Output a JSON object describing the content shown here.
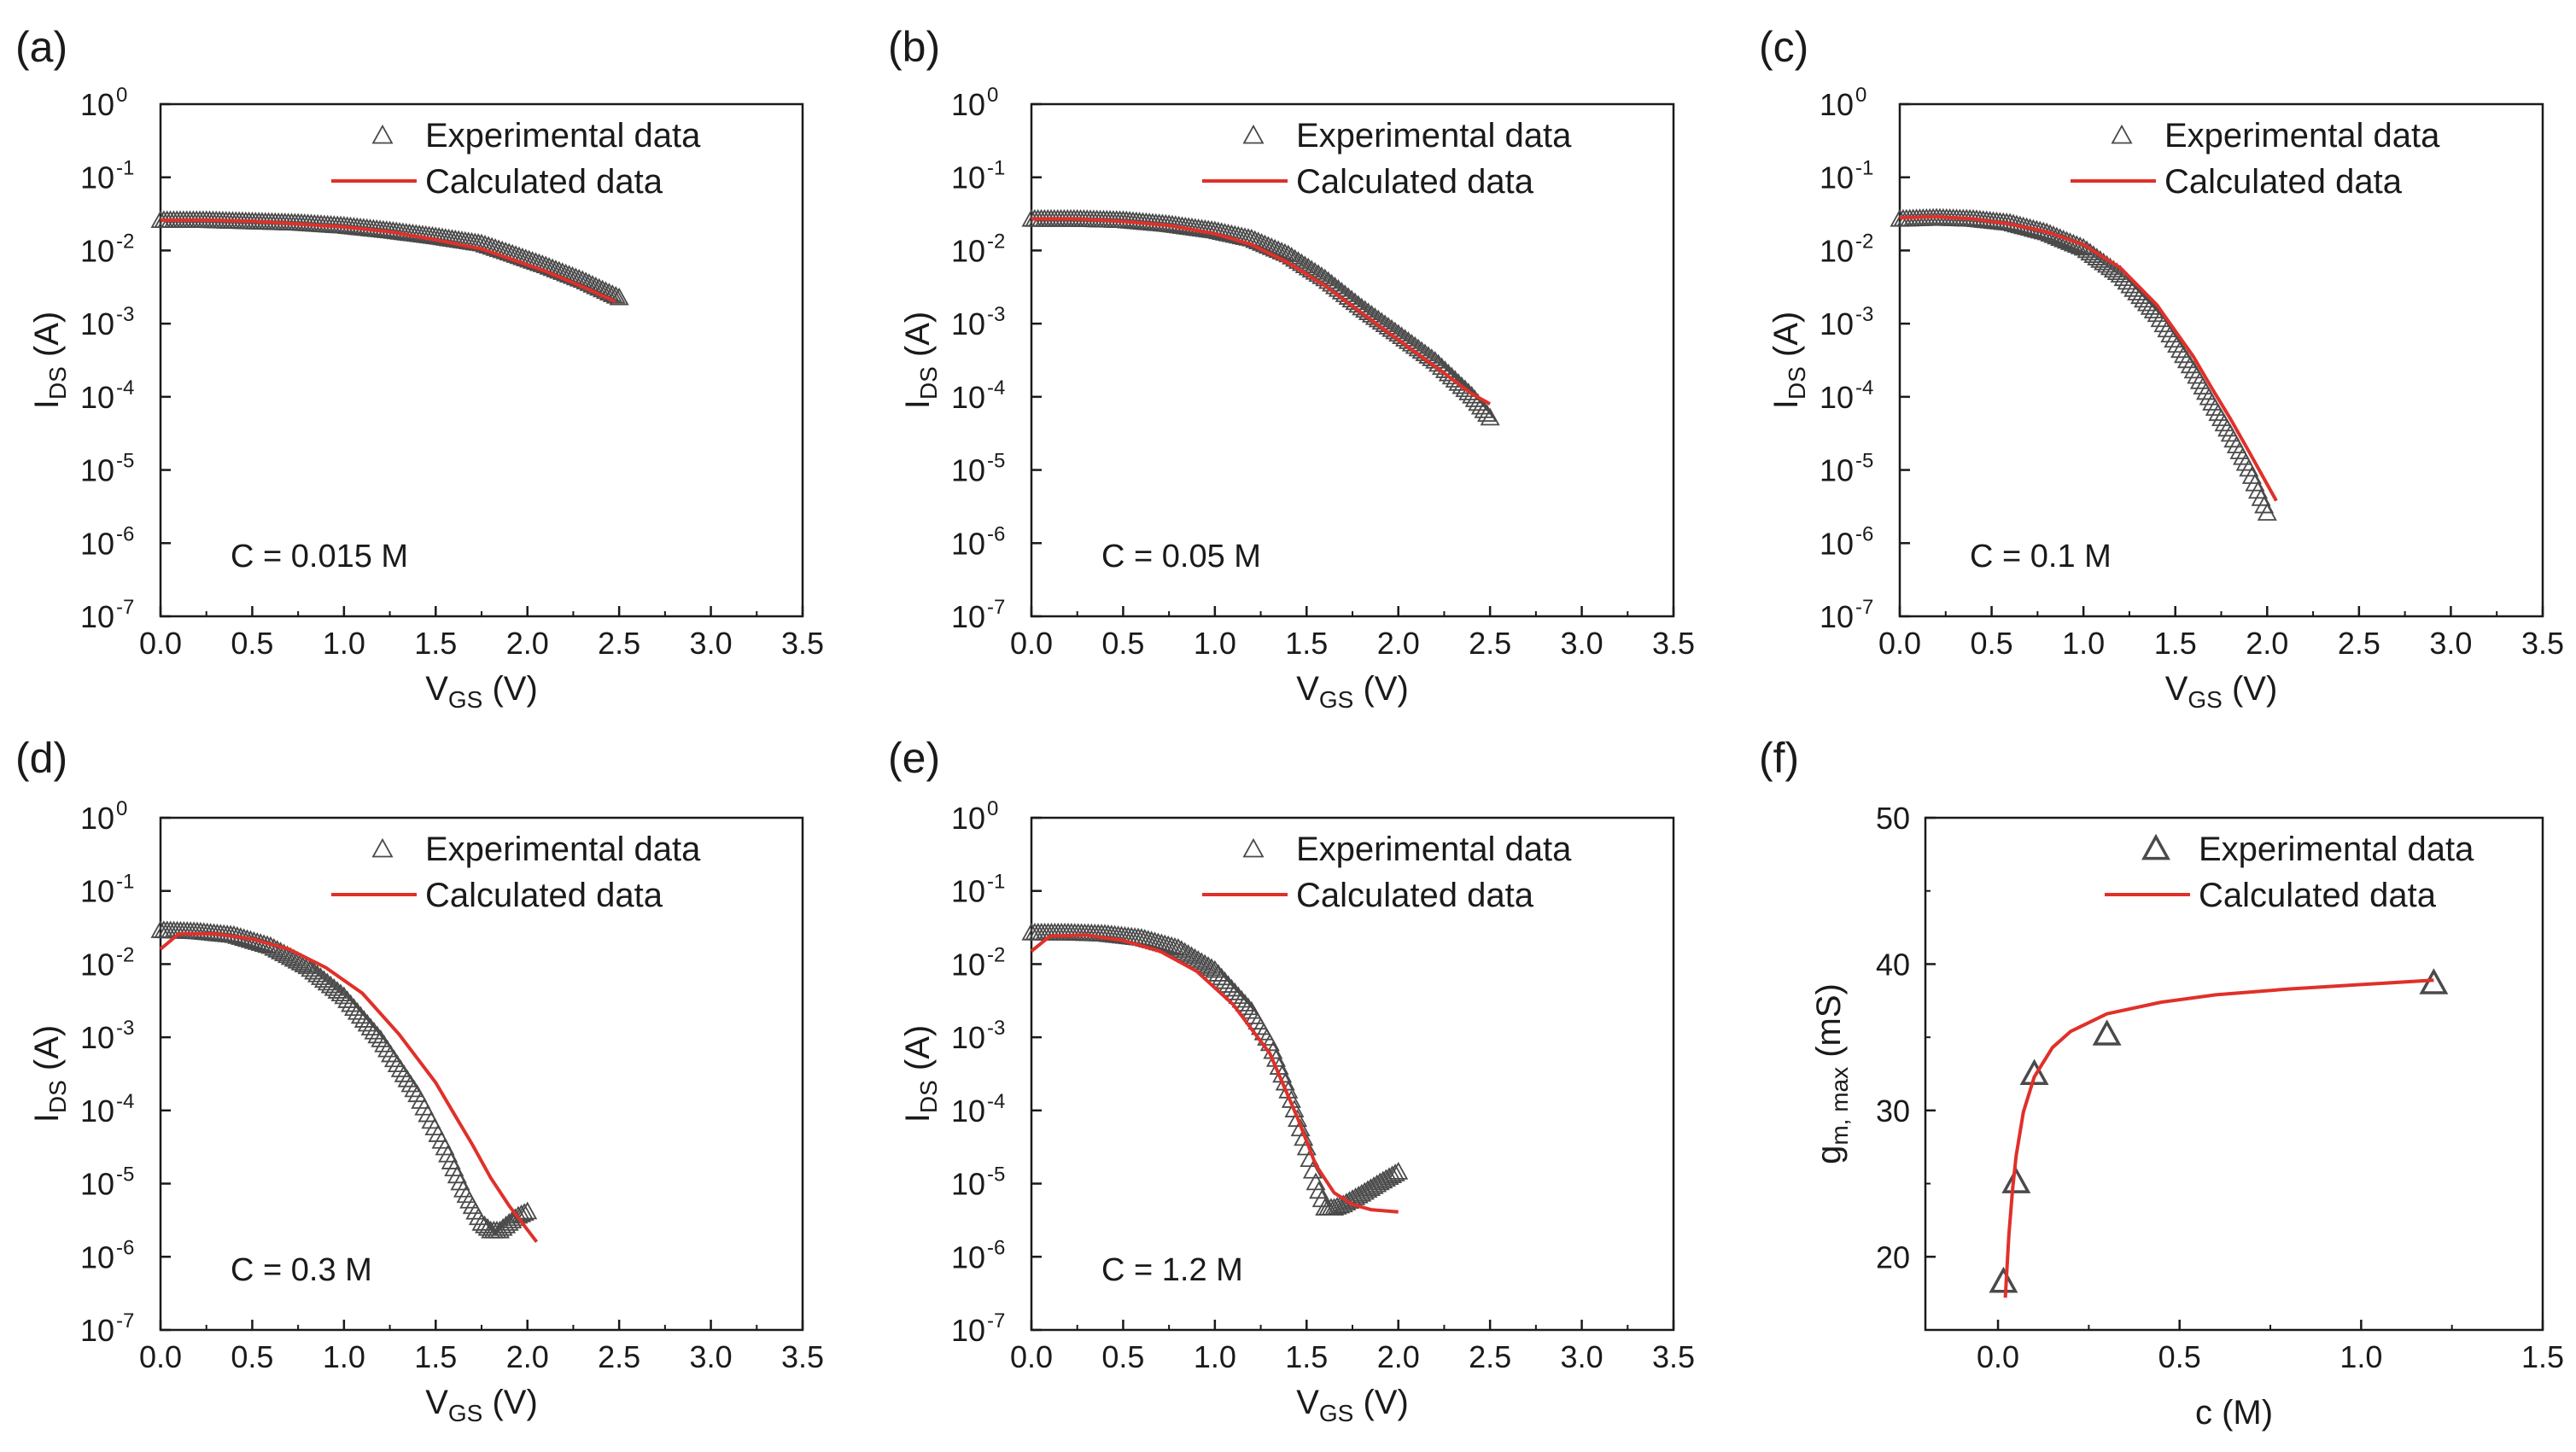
{
  "figure": {
    "colors": {
      "experimental": "#4a4a4a",
      "calculated": "#e0302a",
      "axis": "#1a1a1a"
    }
  },
  "chart_data": [
    {
      "panel": "(a)",
      "type": "scatter",
      "yscale": "log",
      "xlabel_main": "V",
      "xlabel_sub": "GS",
      "xlabel_tail": " (V)",
      "ylabel_main": "I",
      "ylabel_sub": "DS",
      "ylabel_tail": " (A)",
      "xlim": [
        0,
        3.5
      ],
      "ylim": [
        1e-07,
        1
      ],
      "xticks": [
        "0.0",
        "0.5",
        "1.0",
        "1.5",
        "2.0",
        "2.5",
        "3.0",
        "3.5"
      ],
      "ytick_exponents": [
        "0",
        "-1",
        "-2",
        "-3",
        "-4",
        "-5",
        "-6",
        "-7"
      ],
      "annotation": "C = 0.015 M",
      "legend": [
        "Experimental data",
        "Calculated data"
      ],
      "legend_position": "top-right",
      "series": [
        {
          "name": "Experimental data",
          "style": "markers",
          "x": [
            0.0,
            0.25,
            0.5,
            0.75,
            1.0,
            1.25,
            1.5,
            1.75,
            1.9,
            2.1,
            2.3,
            2.5
          ],
          "y": [
            0.025,
            0.025,
            0.024,
            0.023,
            0.021,
            0.018,
            0.015,
            0.012,
            0.009,
            0.006,
            0.0038,
            0.0022
          ]
        },
        {
          "name": "Calculated data",
          "style": "line",
          "x": [
            0.0,
            0.25,
            0.5,
            0.75,
            1.0,
            1.25,
            1.5,
            1.75,
            1.9,
            2.1,
            2.3,
            2.48
          ],
          "y": [
            0.026,
            0.026,
            0.025,
            0.023,
            0.021,
            0.018,
            0.014,
            0.0105,
            0.0078,
            0.0052,
            0.0032,
            0.002
          ]
        }
      ]
    },
    {
      "panel": "(b)",
      "type": "scatter",
      "yscale": "log",
      "xlabel_main": "V",
      "xlabel_sub": "GS",
      "xlabel_tail": " (V)",
      "ylabel_main": "I",
      "ylabel_sub": "DS",
      "ylabel_tail": " (A)",
      "xlim": [
        0,
        3.5
      ],
      "ylim": [
        1e-07,
        1
      ],
      "xticks": [
        "0.0",
        "0.5",
        "1.0",
        "1.5",
        "2.0",
        "2.5",
        "3.0",
        "3.5"
      ],
      "ytick_exponents": [
        "0",
        "-1",
        "-2",
        "-3",
        "-4",
        "-5",
        "-6",
        "-7"
      ],
      "annotation": "C = 0.05 M",
      "legend": [
        "Experimental data",
        "Calculated data"
      ],
      "legend_position": "top-right",
      "series": [
        {
          "name": "Experimental data",
          "style": "markers",
          "x": [
            0.0,
            0.25,
            0.5,
            0.75,
            1.0,
            1.2,
            1.4,
            1.6,
            1.8,
            2.0,
            2.2,
            2.4,
            2.5
          ],
          "y": [
            0.026,
            0.026,
            0.025,
            0.022,
            0.018,
            0.014,
            0.0085,
            0.004,
            0.0016,
            0.0007,
            0.0003,
            0.0001,
            5e-05
          ]
        },
        {
          "name": "Calculated data",
          "style": "line",
          "x": [
            0.0,
            0.25,
            0.5,
            0.75,
            1.0,
            1.2,
            1.4,
            1.6,
            1.8,
            2.0,
            2.2,
            2.4,
            2.5
          ],
          "y": [
            0.027,
            0.027,
            0.025,
            0.022,
            0.017,
            0.012,
            0.0068,
            0.0033,
            0.0014,
            0.0006,
            0.00026,
            0.00011,
            8e-05
          ]
        }
      ]
    },
    {
      "panel": "(c)",
      "type": "scatter",
      "yscale": "log",
      "xlabel_main": "V",
      "xlabel_sub": "GS",
      "xlabel_tail": " (V)",
      "ylabel_main": "I",
      "ylabel_sub": "DS",
      "ylabel_tail": " (A)",
      "xlim": [
        0,
        3.5
      ],
      "ylim": [
        1e-07,
        1
      ],
      "xticks": [
        "0.0",
        "0.5",
        "1.0",
        "1.5",
        "2.0",
        "2.5",
        "3.0",
        "3.5"
      ],
      "ytick_exponents": [
        "0",
        "-1",
        "-2",
        "-3",
        "-4",
        "-5",
        "-6",
        "-7"
      ],
      "annotation": "C = 0.1 M",
      "legend": [
        "Experimental data",
        "Calculated data"
      ],
      "legend_position": "top-right",
      "series": [
        {
          "name": "Experimental data",
          "style": "markers",
          "x": [
            0.0,
            0.2,
            0.4,
            0.6,
            0.8,
            1.0,
            1.2,
            1.4,
            1.6,
            1.7,
            1.8,
            1.9,
            2.0
          ],
          "y": [
            0.026,
            0.027,
            0.026,
            0.023,
            0.017,
            0.0105,
            0.0045,
            0.0013,
            0.00022,
            8e-05,
            3e-05,
            1e-05,
            2.5e-06
          ]
        },
        {
          "name": "Calculated data",
          "style": "line",
          "x": [
            0.0,
            0.2,
            0.4,
            0.6,
            0.8,
            1.0,
            1.2,
            1.4,
            1.6,
            1.7,
            1.8,
            1.9,
            2.05
          ],
          "y": [
            0.028,
            0.029,
            0.027,
            0.023,
            0.018,
            0.012,
            0.0058,
            0.0018,
            0.00035,
            0.00013,
            5e-05,
            1.8e-05,
            3.8e-06
          ]
        }
      ]
    },
    {
      "panel": "(d)",
      "type": "scatter",
      "yscale": "log",
      "xlabel_main": "V",
      "xlabel_sub": "GS",
      "xlabel_tail": " (V)",
      "ylabel_main": "I",
      "ylabel_sub": "DS",
      "ylabel_tail": " (A)",
      "xlim": [
        0,
        3.5
      ],
      "ylim": [
        1e-07,
        1
      ],
      "xticks": [
        "0.0",
        "0.5",
        "1.0",
        "1.5",
        "2.0",
        "2.5",
        "3.0",
        "3.5"
      ],
      "ytick_exponents": [
        "0",
        "-1",
        "-2",
        "-3",
        "-4",
        "-5",
        "-6",
        "-7"
      ],
      "annotation": "C = 0.3 M",
      "legend": [
        "Experimental data",
        "Calculated data"
      ],
      "legend_position": "top-right",
      "series": [
        {
          "name": "Experimental data",
          "style": "markers",
          "x": [
            0.0,
            0.2,
            0.4,
            0.6,
            0.8,
            1.0,
            1.2,
            1.4,
            1.55,
            1.65,
            1.75,
            1.8,
            1.85,
            1.9,
            1.95,
            2.0
          ],
          "y": [
            0.028,
            0.027,
            0.024,
            0.017,
            0.009,
            0.0035,
            0.0009,
            0.00016,
            3e-05,
            8e-06,
            2.8e-06,
            2.2e-06,
            2.2e-06,
            2.8e-06,
            3.5e-06,
            4e-06
          ]
        },
        {
          "name": "Calculated data",
          "style": "line",
          "x": [
            0.0,
            0.1,
            0.3,
            0.5,
            0.7,
            0.9,
            1.1,
            1.3,
            1.5,
            1.6,
            1.7,
            1.8,
            1.9,
            2.05
          ],
          "y": [
            0.016,
            0.026,
            0.026,
            0.022,
            0.016,
            0.009,
            0.004,
            0.0011,
            0.00024,
            9e-05,
            3.4e-05,
            1.2e-05,
            5e-06,
            1.6e-06
          ]
        }
      ]
    },
    {
      "panel": "(e)",
      "type": "scatter",
      "yscale": "log",
      "xlabel_main": "V",
      "xlabel_sub": "GS",
      "xlabel_tail": " (V)",
      "ylabel_main": "I",
      "ylabel_sub": "DS",
      "ylabel_tail": " (A)",
      "xlim": [
        0,
        3.5
      ],
      "ylim": [
        1e-07,
        1
      ],
      "xticks": [
        "0.0",
        "0.5",
        "1.0",
        "1.5",
        "2.0",
        "2.5",
        "3.0",
        "3.5"
      ],
      "ytick_exponents": [
        "0",
        "-1",
        "-2",
        "-3",
        "-4",
        "-5",
        "-6",
        "-7"
      ],
      "annotation": "C = 1.2 M",
      "legend": [
        "Experimental data",
        "Calculated data"
      ],
      "legend_position": "top-right",
      "series": [
        {
          "name": "Experimental data",
          "style": "markers",
          "x": [
            0.0,
            0.2,
            0.4,
            0.6,
            0.8,
            1.0,
            1.2,
            1.3,
            1.4,
            1.5,
            1.55,
            1.6,
            1.65,
            1.7,
            1.8,
            1.9,
            2.0
          ],
          "y": [
            0.026,
            0.026,
            0.025,
            0.022,
            0.016,
            0.008,
            0.0022,
            0.0008,
            0.00018,
            3e-05,
            1e-05,
            4.5e-06,
            4.5e-06,
            5e-06,
            7e-06,
            1e-05,
            1.4e-05
          ]
        },
        {
          "name": "Calculated data",
          "style": "line",
          "x": [
            0.0,
            0.1,
            0.3,
            0.5,
            0.7,
            0.9,
            1.1,
            1.3,
            1.45,
            1.55,
            1.65,
            1.75,
            1.85,
            2.0
          ],
          "y": [
            0.015,
            0.024,
            0.025,
            0.021,
            0.015,
            0.008,
            0.0028,
            0.0006,
            8e-05,
            1.8e-05,
            7.5e-06,
            5.2e-06,
            4.4e-06,
            4.1e-06
          ]
        }
      ]
    },
    {
      "panel": "(f)",
      "type": "scatter",
      "yscale": "linear",
      "xlabel_main": "c",
      "xlabel_sub": "",
      "xlabel_tail": " (M)",
      "ylabel_main": "g",
      "ylabel_sub": "m, max",
      "ylabel_tail": " (mS)",
      "xlim": [
        -0.2,
        1.5
      ],
      "ylim": [
        15,
        50
      ],
      "xticks": [
        "0.0",
        "0.5",
        "1.0",
        "1.5"
      ],
      "yticks": [
        "20",
        "30",
        "40",
        "50"
      ],
      "legend": [
        "Experimental data",
        "Calculated data"
      ],
      "legend_position": "top-right",
      "series": [
        {
          "name": "Experimental data",
          "style": "markers",
          "x": [
            0.015,
            0.05,
            0.1,
            0.3,
            1.2
          ],
          "y": [
            18.2,
            25.0,
            32.4,
            35.1,
            38.6
          ]
        },
        {
          "name": "Calculated data",
          "style": "line",
          "x": [
            0.02,
            0.03,
            0.04,
            0.05,
            0.07,
            0.1,
            0.15,
            0.2,
            0.3,
            0.45,
            0.6,
            0.8,
            1.0,
            1.2
          ],
          "y": [
            17.2,
            21.5,
            24.6,
            26.9,
            29.9,
            32.3,
            34.3,
            35.4,
            36.6,
            37.4,
            37.9,
            38.3,
            38.6,
            38.9
          ]
        }
      ]
    }
  ]
}
